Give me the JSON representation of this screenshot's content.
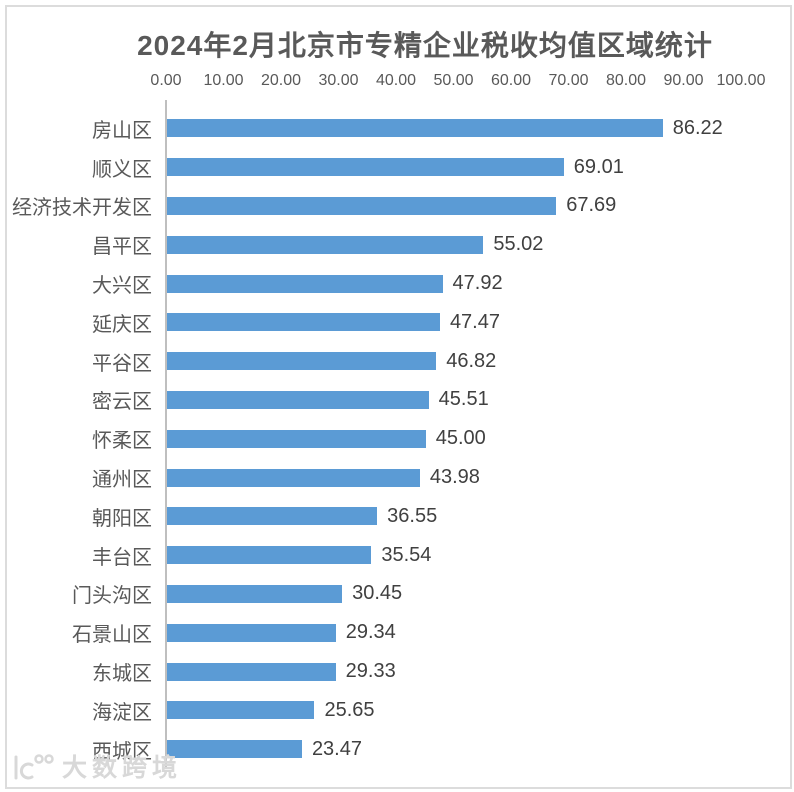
{
  "watermark": {
    "text": "大数跨境"
  },
  "colors": {
    "bar": "#5B9BD5",
    "axis_line": "#BFBFBF",
    "frame_border": "#DCDCDC",
    "title_text": "#595959",
    "label_text": "#595959",
    "value_text": "#404040",
    "watermark": "#D8D8D8"
  },
  "chart_data": {
    "type": "bar",
    "orientation": "horizontal",
    "title": "2024年2月北京市专精企业税收均值区域统计",
    "categories": [
      "房山区",
      "顺义区",
      "经济技术开发区",
      "昌平区",
      "大兴区",
      "延庆区",
      "平谷区",
      "密云区",
      "怀柔区",
      "通州区",
      "朝阳区",
      "丰台区",
      "门头沟区",
      "石景山区",
      "东城区",
      "海淀区",
      "西城区"
    ],
    "values": [
      86.22,
      69.01,
      67.69,
      55.02,
      47.92,
      47.47,
      46.82,
      45.51,
      45.0,
      43.98,
      36.55,
      35.54,
      30.45,
      29.34,
      29.33,
      25.65,
      23.47
    ],
    "value_label_decimals": 2,
    "x_ticks": [
      "0.00",
      "10.00",
      "20.00",
      "30.00",
      "40.00",
      "50.00",
      "60.00",
      "70.00",
      "80.00",
      "90.00",
      "100.00"
    ],
    "xlim": [
      0,
      100
    ],
    "grid": false,
    "legend": "none",
    "value_label_position": "end-of-bar",
    "xlabel": "",
    "ylabel": ""
  }
}
